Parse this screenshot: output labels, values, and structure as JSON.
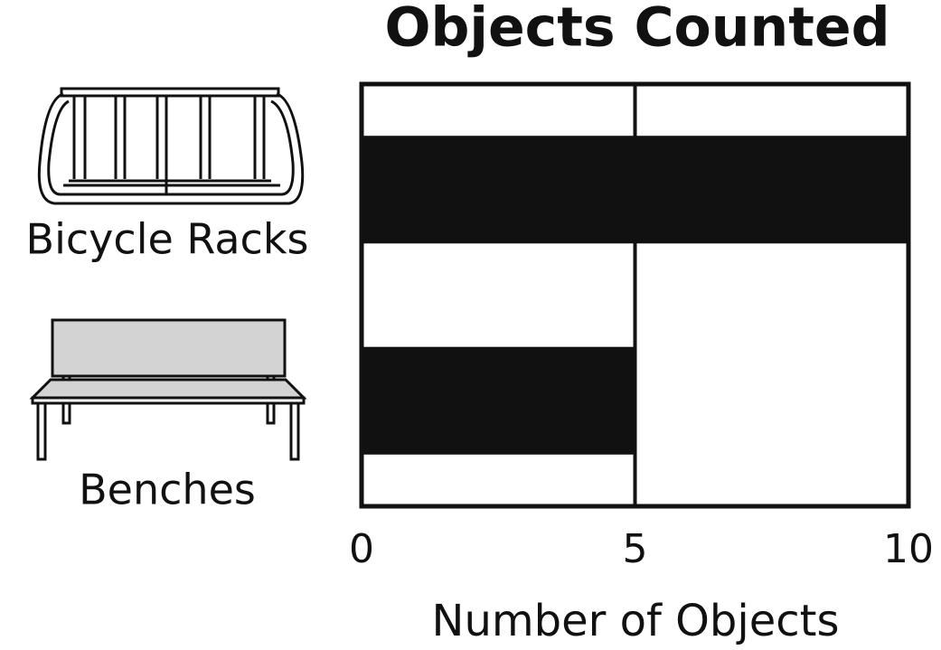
{
  "chart_data": {
    "type": "bar",
    "orientation": "horizontal",
    "title": "Objects Counted",
    "categories": [
      "Bicycle Racks",
      "Benches"
    ],
    "values": [
      10,
      5
    ],
    "color": "#111111",
    "xlabel": "Number of Objects",
    "xlim": [
      0,
      10
    ],
    "xticks": [
      0,
      5,
      10
    ],
    "grid": true
  }
}
